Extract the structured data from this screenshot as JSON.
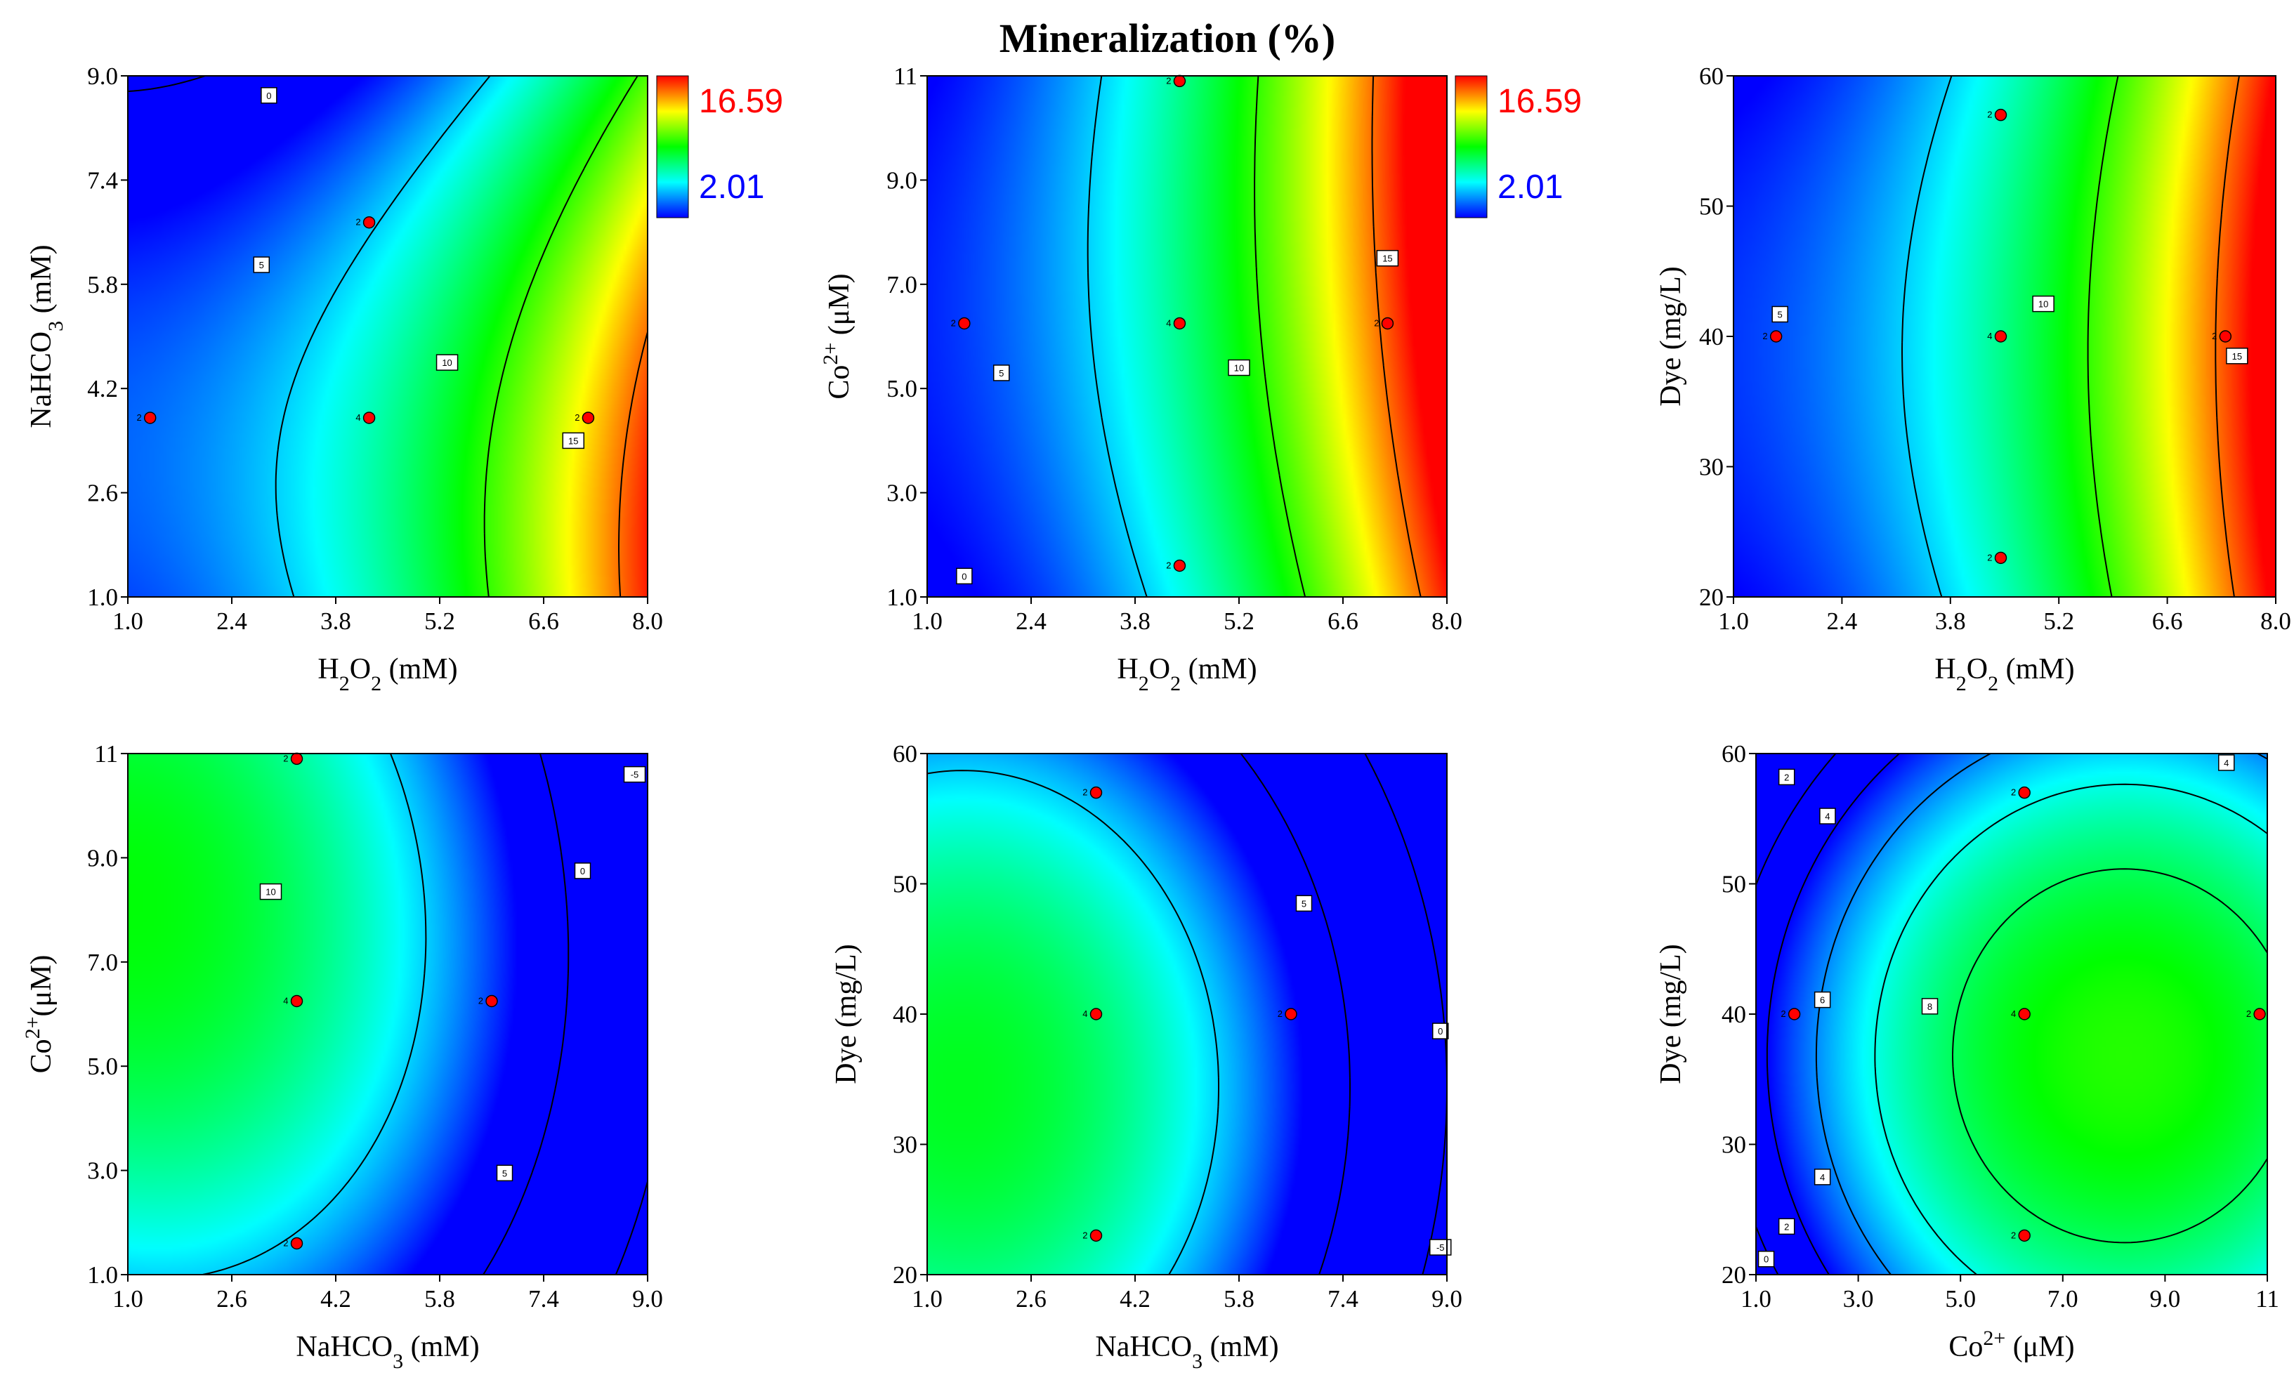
{
  "chart_data": {
    "type": "heatmap",
    "title": "Mineralization (%)",
    "colorbar": {
      "max": 16.59,
      "min": 2.01,
      "max_label": "16.59",
      "min_label": "2.01"
    },
    "plots": [
      {
        "id": "p1",
        "xlabel": "H2O2 (mM)",
        "ylabel": "NaHCO3 (mM)",
        "xticks": [
          "1.0",
          "2.4",
          "3.8",
          "5.2",
          "6.6",
          "8.0"
        ],
        "yticks": [
          "1.0",
          "2.6",
          "4.2",
          "5.8",
          "7.4",
          "9.0"
        ],
        "xlim": [
          1,
          8
        ],
        "ylim": [
          1,
          9
        ],
        "contour_levels": [
          0,
          5,
          10,
          15
        ],
        "contour_labels": [
          {
            "x": 2.9,
            "y": 8.7,
            "text": "0"
          },
          {
            "x": 2.8,
            "y": 6.1,
            "text": "5"
          },
          {
            "x": 5.3,
            "y": 4.6,
            "text": "10"
          },
          {
            "x": 7.0,
            "y": 3.4,
            "text": "15"
          }
        ],
        "design_points": [
          {
            "x": 1.3,
            "y": 3.75,
            "label": "2"
          },
          {
            "x": 4.25,
            "y": 6.75,
            "label": "2"
          },
          {
            "x": 4.25,
            "y": 3.75,
            "label": "4"
          },
          {
            "x": 7.2,
            "y": 3.75,
            "label": "2"
          }
        ]
      },
      {
        "id": "p2",
        "xlabel": "H2O2 (mM)",
        "ylabel": "Co2+ (μM)",
        "xticks": [
          "1.0",
          "2.4",
          "3.8",
          "5.2",
          "6.6",
          "8.0"
        ],
        "yticks": [
          "1.0",
          "3.0",
          "5.0",
          "7.0",
          "9.0",
          "11"
        ],
        "xlim": [
          1,
          8
        ],
        "ylim": [
          1,
          11
        ],
        "contour_levels": [
          0,
          5,
          10,
          15
        ],
        "contour_labels": [
          {
            "x": 1.5,
            "y": 1.4,
            "text": "0"
          },
          {
            "x": 2.0,
            "y": 5.3,
            "text": "5"
          },
          {
            "x": 5.2,
            "y": 5.4,
            "text": "10"
          },
          {
            "x": 7.2,
            "y": 7.5,
            "text": "15"
          }
        ],
        "design_points": [
          {
            "x": 1.5,
            "y": 6.25,
            "label": "2"
          },
          {
            "x": 4.4,
            "y": 10.9,
            "label": "2"
          },
          {
            "x": 4.4,
            "y": 6.25,
            "label": "4"
          },
          {
            "x": 4.4,
            "y": 1.6,
            "label": "2"
          },
          {
            "x": 7.2,
            "y": 6.25,
            "label": "2"
          }
        ]
      },
      {
        "id": "p3",
        "xlabel": "H2O2 (mM)",
        "ylabel": "Dye (mg/L)",
        "xticks": [
          "1.0",
          "2.4",
          "3.8",
          "5.2",
          "6.6",
          "8.0"
        ],
        "yticks": [
          "20",
          "30",
          "40",
          "50",
          "60"
        ],
        "xlim": [
          1,
          8
        ],
        "ylim": [
          20,
          60
        ],
        "contour_levels": [
          5,
          10,
          15
        ],
        "contour_labels": [
          {
            "x": 1.6,
            "y": 41.7,
            "text": "5"
          },
          {
            "x": 5.0,
            "y": 42.5,
            "text": "10"
          },
          {
            "x": 7.5,
            "y": 38.5,
            "text": "15"
          }
        ],
        "design_points": [
          {
            "x": 1.55,
            "y": 40,
            "label": "2"
          },
          {
            "x": 4.45,
            "y": 57,
            "label": "2"
          },
          {
            "x": 4.45,
            "y": 40,
            "label": "4"
          },
          {
            "x": 4.45,
            "y": 23,
            "label": "2"
          },
          {
            "x": 7.35,
            "y": 40,
            "label": "2"
          }
        ]
      },
      {
        "id": "p4",
        "xlabel": "NaHCO3 (mM)",
        "ylabel": "Co2+ (μM)",
        "xticks": [
          "1.0",
          "2.6",
          "4.2",
          "5.8",
          "7.4",
          "9.0"
        ],
        "yticks": [
          "1.0",
          "3.0",
          "5.0",
          "7.0",
          "9.0",
          "11"
        ],
        "xlim": [
          1,
          9
        ],
        "ylim": [
          1,
          11
        ],
        "contour_levels": [
          -5,
          0,
          5,
          10
        ],
        "contour_labels": [
          {
            "x": 3.2,
            "y": 8.35,
            "text": "10"
          },
          {
            "x": 6.8,
            "y": 2.95,
            "text": "5"
          },
          {
            "x": 8.0,
            "y": 8.75,
            "text": "0"
          },
          {
            "x": 8.8,
            "y": 10.6,
            "text": "-5"
          }
        ],
        "design_points": [
          {
            "x": 3.6,
            "y": 10.9,
            "label": "2"
          },
          {
            "x": 3.6,
            "y": 6.25,
            "label": "4"
          },
          {
            "x": 3.6,
            "y": 1.6,
            "label": "2"
          },
          {
            "x": 6.6,
            "y": 6.25,
            "label": "2"
          }
        ]
      },
      {
        "id": "p5",
        "xlabel": "NaHCO3 (mM)",
        "ylabel": "Dye (mg/L)",
        "xticks": [
          "1.0",
          "2.6",
          "4.2",
          "5.8",
          "7.4",
          "9.0"
        ],
        "yticks": [
          "20",
          "30",
          "40",
          "50",
          "60"
        ],
        "xlim": [
          1,
          9
        ],
        "ylim": [
          20,
          60
        ],
        "contour_levels": [
          -5,
          0,
          5
        ],
        "contour_labels": [
          {
            "x": 6.8,
            "y": 48.5,
            "text": "5"
          },
          {
            "x": 8.9,
            "y": 38.7,
            "text": "0"
          },
          {
            "x": 8.9,
            "y": 22.1,
            "text": "-5"
          }
        ],
        "design_points": [
          {
            "x": 3.6,
            "y": 57,
            "label": "2"
          },
          {
            "x": 3.6,
            "y": 40,
            "label": "4"
          },
          {
            "x": 3.6,
            "y": 23,
            "label": "2"
          },
          {
            "x": 6.6,
            "y": 40,
            "label": "2"
          }
        ]
      },
      {
        "id": "p6",
        "xlabel": "Co2+ (μM)",
        "ylabel": "Dye (mg/L)",
        "xticks": [
          "1.0",
          "3.0",
          "5.0",
          "7.0",
          "9.0",
          "11"
        ],
        "yticks": [
          "20",
          "30",
          "40",
          "50",
          "60"
        ],
        "xlim": [
          1,
          11
        ],
        "ylim": [
          20,
          60
        ],
        "contour_levels": [
          0,
          2,
          4,
          6,
          8
        ],
        "contour_labels": [
          {
            "x": 1.2,
            "y": 21.2,
            "text": "0"
          },
          {
            "x": 1.6,
            "y": 23.7,
            "text": "2"
          },
          {
            "x": 1.6,
            "y": 58.2,
            "text": "2"
          },
          {
            "x": 2.3,
            "y": 27.5,
            "text": "4"
          },
          {
            "x": 2.4,
            "y": 55.2,
            "text": "4"
          },
          {
            "x": 10.2,
            "y": 59.3,
            "text": "4"
          },
          {
            "x": 2.3,
            "y": 41.1,
            "text": "6"
          },
          {
            "x": 4.4,
            "y": 40.6,
            "text": "8"
          }
        ],
        "design_points": [
          {
            "x": 1.75,
            "y": 40,
            "label": "2"
          },
          {
            "x": 6.25,
            "y": 57,
            "label": "2"
          },
          {
            "x": 6.25,
            "y": 40,
            "label": "4"
          },
          {
            "x": 6.25,
            "y": 23,
            "label": "2"
          },
          {
            "x": 10.85,
            "y": 40,
            "label": "2"
          }
        ]
      }
    ]
  }
}
